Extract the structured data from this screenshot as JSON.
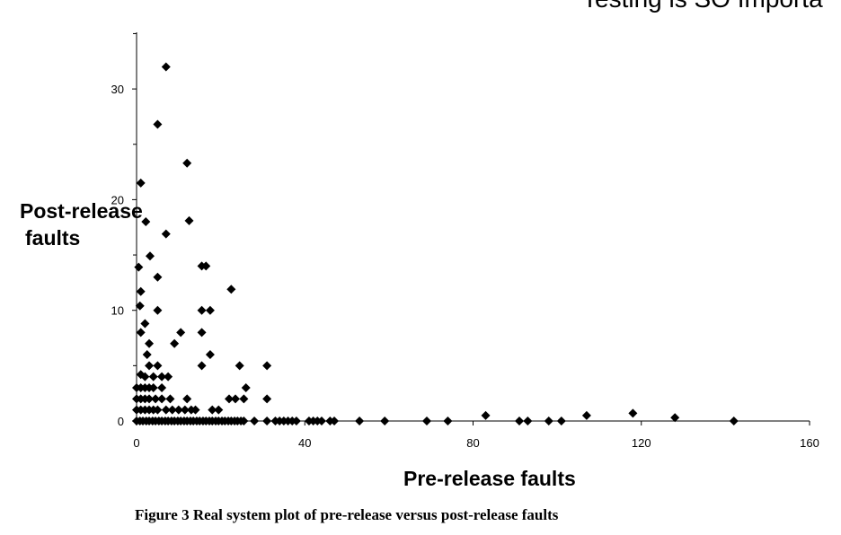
{
  "header_text": "Testing is SO Importa",
  "caption": "Figure 3 Real system plot of pre-release versus post-release faults",
  "chart_data": {
    "type": "scatter",
    "title": "",
    "xlabel": "Pre-release faults",
    "ylabel_lines": [
      "Post-release",
      "faults"
    ],
    "xlim": [
      0,
      160
    ],
    "ylim": [
      0,
      35
    ],
    "xticks": [
      0,
      40,
      80,
      120,
      160
    ],
    "yticks": [
      0,
      10,
      20,
      30
    ],
    "grid": false,
    "legend": "none",
    "marker": "diamond",
    "color": "#000000",
    "series": [
      {
        "points": [
          [
            7,
            32
          ],
          [
            5,
            26.8
          ],
          [
            12,
            23.3
          ],
          [
            1,
            21.5
          ],
          [
            12.5,
            18.1
          ],
          [
            2.2,
            18
          ],
          [
            7,
            16.9
          ],
          [
            3.2,
            14.9
          ],
          [
            15.5,
            14
          ],
          [
            16.5,
            14
          ],
          [
            0.5,
            13.9
          ],
          [
            5,
            13
          ],
          [
            22.5,
            11.9
          ],
          [
            1,
            11.7
          ],
          [
            0.8,
            10.4
          ],
          [
            5,
            10
          ],
          [
            15.5,
            10
          ],
          [
            17.5,
            10
          ],
          [
            2,
            8.8
          ],
          [
            1,
            8
          ],
          [
            10.5,
            8
          ],
          [
            15.5,
            8
          ],
          [
            3,
            7
          ],
          [
            9,
            7
          ],
          [
            17.5,
            6
          ],
          [
            2.5,
            6
          ],
          [
            3,
            5
          ],
          [
            5,
            5
          ],
          [
            15.5,
            5
          ],
          [
            24.5,
            5
          ],
          [
            31,
            5
          ],
          [
            1,
            4.2
          ],
          [
            2,
            4
          ],
          [
            4,
            4
          ],
          [
            6,
            4
          ],
          [
            7.5,
            4
          ],
          [
            26,
            3
          ],
          [
            0,
            3
          ],
          [
            1,
            3
          ],
          [
            2,
            3
          ],
          [
            3,
            3
          ],
          [
            4,
            3
          ],
          [
            6,
            3
          ],
          [
            0,
            2
          ],
          [
            1,
            2
          ],
          [
            2,
            2
          ],
          [
            3,
            2
          ],
          [
            4.5,
            2
          ],
          [
            6,
            2
          ],
          [
            8,
            2
          ],
          [
            12,
            2
          ],
          [
            22,
            2
          ],
          [
            23.5,
            2
          ],
          [
            25.5,
            2
          ],
          [
            31,
            2
          ],
          [
            0,
            1
          ],
          [
            1,
            1
          ],
          [
            2,
            1
          ],
          [
            3,
            1
          ],
          [
            4,
            1
          ],
          [
            5,
            1
          ],
          [
            7,
            1
          ],
          [
            8.5,
            1
          ],
          [
            10,
            1
          ],
          [
            11.5,
            1
          ],
          [
            13,
            1
          ],
          [
            14,
            1
          ],
          [
            18,
            1
          ],
          [
            19.5,
            1
          ],
          [
            0,
            0
          ],
          [
            0.8,
            0
          ],
          [
            1.5,
            0
          ],
          [
            2.3,
            0
          ],
          [
            3,
            0
          ],
          [
            3.8,
            0
          ],
          [
            4.5,
            0
          ],
          [
            5.3,
            0
          ],
          [
            6,
            0
          ],
          [
            6.8,
            0
          ],
          [
            7.5,
            0
          ],
          [
            8.3,
            0
          ],
          [
            9,
            0
          ],
          [
            9.8,
            0
          ],
          [
            10.5,
            0
          ],
          [
            11.3,
            0
          ],
          [
            12,
            0
          ],
          [
            12.8,
            0
          ],
          [
            13.5,
            0
          ],
          [
            14.3,
            0
          ],
          [
            15,
            0
          ],
          [
            15.8,
            0
          ],
          [
            16.5,
            0
          ],
          [
            17.3,
            0
          ],
          [
            18,
            0
          ],
          [
            18.8,
            0
          ],
          [
            19.5,
            0
          ],
          [
            20.3,
            0
          ],
          [
            21,
            0
          ],
          [
            21.8,
            0
          ],
          [
            22.5,
            0
          ],
          [
            23.3,
            0
          ],
          [
            24,
            0
          ],
          [
            24.8,
            0
          ],
          [
            25.5,
            0
          ],
          [
            28,
            0
          ],
          [
            31,
            0
          ],
          [
            33,
            0
          ],
          [
            34,
            0
          ],
          [
            35,
            0
          ],
          [
            36,
            0
          ],
          [
            37,
            0
          ],
          [
            38,
            0
          ],
          [
            41,
            0
          ],
          [
            42,
            0
          ],
          [
            43,
            0
          ],
          [
            44,
            0
          ],
          [
            46,
            0
          ],
          [
            47,
            0
          ],
          [
            53,
            0
          ],
          [
            59,
            0
          ],
          [
            69,
            0
          ],
          [
            74,
            0
          ],
          [
            83,
            0.5
          ],
          [
            91,
            0
          ],
          [
            93,
            0
          ],
          [
            98,
            0
          ],
          [
            101,
            0
          ],
          [
            107,
            0.5
          ],
          [
            118,
            0.7
          ],
          [
            128,
            0.3
          ],
          [
            142,
            0
          ]
        ]
      }
    ]
  }
}
